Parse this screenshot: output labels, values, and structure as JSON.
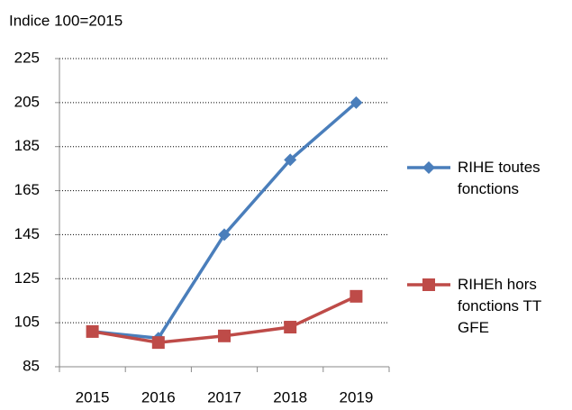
{
  "chart_data": {
    "type": "line",
    "y_axis_label": "Indice 100=2015",
    "categories": [
      "2015",
      "2016",
      "2017",
      "2018",
      "2019"
    ],
    "series": [
      {
        "name": "RIHE toutes fonctions",
        "color": "#4a7ebb",
        "marker": "diamond",
        "values": [
          101,
          98,
          145,
          179,
          205
        ]
      },
      {
        "name": "RIHEh hors fonctions TT GFE",
        "color": "#be4b48",
        "marker": "square",
        "values": [
          101,
          96,
          99,
          103,
          117
        ]
      }
    ],
    "ylim": [
      85,
      225
    ],
    "yticks": [
      85,
      105,
      125,
      145,
      165,
      185,
      205,
      225
    ],
    "grid": true,
    "legend": "right"
  }
}
